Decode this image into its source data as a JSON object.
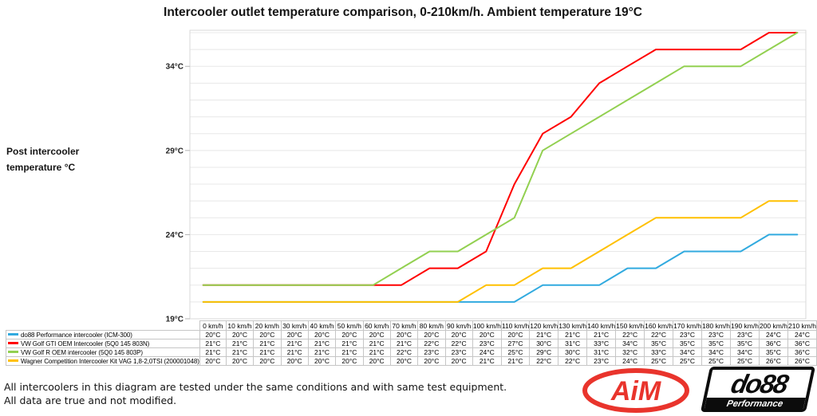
{
  "title": "Intercooler outlet temperature comparison, 0-210km/h. Ambient temperature 19°C",
  "y_axis": {
    "label_line1": "Post intercooler",
    "label_line2": "temperature °C",
    "ticks": [
      {
        "value": 34,
        "label": "34°C"
      },
      {
        "value": 29,
        "label": "29°C"
      },
      {
        "value": 24,
        "label": "24°C"
      },
      {
        "value": 19,
        "label": "19°C"
      }
    ]
  },
  "chart_data": {
    "type": "line",
    "x": [
      0,
      10,
      20,
      30,
      40,
      50,
      60,
      70,
      80,
      90,
      100,
      110,
      120,
      130,
      140,
      150,
      160,
      170,
      180,
      190,
      200,
      210
    ],
    "x_unit": "km/h",
    "ylim": [
      19,
      36
    ],
    "grid": true,
    "grid_step_c": 1,
    "legend_position": "table-below",
    "series": [
      {
        "name": "do88 Performance intercooler (ICM-300)",
        "color": "#31AADF",
        "values": [
          20,
          20,
          20,
          20,
          20,
          20,
          20,
          20,
          20,
          20,
          20,
          20,
          21,
          21,
          21,
          22,
          22,
          23,
          23,
          23,
          24,
          24
        ]
      },
      {
        "name": "VW Golf GTI OEM Intercooler (5Q0 145 803N)",
        "color": "#FF0000",
        "values": [
          21,
          21,
          21,
          21,
          21,
          21,
          21,
          21,
          22,
          22,
          23,
          27,
          30,
          31,
          33,
          34,
          35,
          35,
          35,
          35,
          36,
          36
        ]
      },
      {
        "name": "VW Golf R OEM intercooler (5Q0 145 803P)",
        "color": "#92D050",
        "values": [
          21,
          21,
          21,
          21,
          21,
          21,
          21,
          22,
          23,
          23,
          24,
          25,
          29,
          30,
          31,
          32,
          33,
          34,
          34,
          34,
          35,
          36
        ]
      },
      {
        "name": "Wagner Competition Intercooler Kit VAG 1,8-2,0TSI (200001048)",
        "color": "#FFC000",
        "values": [
          20,
          20,
          20,
          20,
          20,
          20,
          20,
          20,
          20,
          20,
          21,
          21,
          22,
          22,
          23,
          24,
          25,
          25,
          25,
          25,
          26,
          26
        ]
      }
    ]
  },
  "table": {
    "col_headers": [
      "0 km/h",
      "10 km/h",
      "20 km/h",
      "30 km/h",
      "40 km/h",
      "50 km/h",
      "60 km/h",
      "70 km/h",
      "80 km/h",
      "90 km/h",
      "100 km/h",
      "110 km/h",
      "120 km/h",
      "130 km/h",
      "140 km/h",
      "150 km/h",
      "160 km/h",
      "170 km/h",
      "180 km/h",
      "190 km/h",
      "200 km/h",
      "210 km/h"
    ],
    "rows": [
      {
        "name": "do88 Performance intercooler (ICM-300)",
        "color": "#31AADF",
        "cells": [
          "20°C",
          "20°C",
          "20°C",
          "20°C",
          "20°C",
          "20°C",
          "20°C",
          "20°C",
          "20°C",
          "20°C",
          "20°C",
          "20°C",
          "21°C",
          "21°C",
          "21°C",
          "22°C",
          "22°C",
          "23°C",
          "23°C",
          "23°C",
          "24°C",
          "24°C"
        ]
      },
      {
        "name": "VW Golf GTI OEM Intercooler (5Q0 145 803N)",
        "color": "#FF0000",
        "cells": [
          "21°C",
          "21°C",
          "21°C",
          "21°C",
          "21°C",
          "21°C",
          "21°C",
          "21°C",
          "22°C",
          "22°C",
          "23°C",
          "27°C",
          "30°C",
          "31°C",
          "33°C",
          "34°C",
          "35°C",
          "35°C",
          "35°C",
          "35°C",
          "36°C",
          "36°C"
        ]
      },
      {
        "name": "VW Golf R OEM intercooler (5Q0 145 803P)",
        "color": "#92D050",
        "cells": [
          "21°C",
          "21°C",
          "21°C",
          "21°C",
          "21°C",
          "21°C",
          "21°C",
          "22°C",
          "23°C",
          "23°C",
          "24°C",
          "25°C",
          "29°C",
          "30°C",
          "31°C",
          "32°C",
          "33°C",
          "34°C",
          "34°C",
          "34°C",
          "35°C",
          "36°C"
        ]
      },
      {
        "name": "Wagner Competition Intercooler Kit VAG 1,8-2,0TSI (200001048)",
        "color": "#FFC000",
        "cells": [
          "20°C",
          "20°C",
          "20°C",
          "20°C",
          "20°C",
          "20°C",
          "20°C",
          "20°C",
          "20°C",
          "20°C",
          "21°C",
          "21°C",
          "22°C",
          "22°C",
          "23°C",
          "24°C",
          "25°C",
          "25°C",
          "25°C",
          "25°C",
          "26°C",
          "26°C"
        ]
      }
    ]
  },
  "footer": {
    "note_line1": "All intercoolers in this diagram are tested under the same conditions and with same test equipment.",
    "note_line2": "All data are true and not modified.",
    "aim_logo_text": "AiM",
    "aim_color": "#E9342C",
    "do88_logo_text": "do88",
    "do88_logo_subtext": "Performance"
  }
}
